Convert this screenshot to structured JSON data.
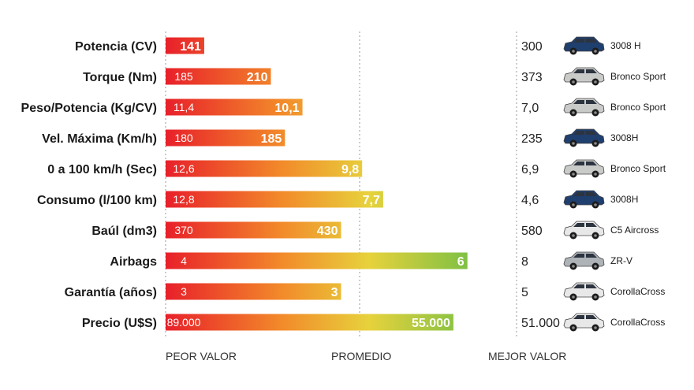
{
  "chart_data": {
    "type": "bar",
    "axis_labels": {
      "worst": "PEOR VALOR",
      "average": "PROMEDIO",
      "best": "MEJOR VALOR"
    },
    "grid": true,
    "rows": [
      {
        "label": "Potencia (CV)",
        "worst": "",
        "value": "141",
        "best": "300",
        "model": "3008 H",
        "score": 0.11,
        "car_color": "#1f3f6e"
      },
      {
        "label": "Torque (Nm)",
        "worst": "185",
        "value": "210",
        "best": "373",
        "model": "Bronco Sport",
        "score": 0.3,
        "car_color": "#c9cbc9"
      },
      {
        "label": "Peso/Potencia (Kg/CV)",
        "worst": "11,4",
        "value": "10,1",
        "best": "7,0",
        "model": "Bronco Sport",
        "score": 0.39,
        "car_color": "#c9cbc9"
      },
      {
        "label": "Vel. Máxima (Km/h)",
        "worst": "180",
        "value": "185",
        "best": "235",
        "model": "3008H",
        "score": 0.34,
        "car_color": "#1f3f6e"
      },
      {
        "label": "0 a 100 km/h (Sec)",
        "worst": "12,6",
        "value": "9,8",
        "best": "6,9",
        "model": "Bronco Sport",
        "score": 0.56,
        "car_color": "#c9cbc9"
      },
      {
        "label": "Consumo (l/100 km)",
        "worst": "12,8",
        "value": "7,7",
        "best": "4,6",
        "model": "3008H",
        "score": 0.62,
        "car_color": "#1f3f6e"
      },
      {
        "label": "Baúl (dm3)",
        "worst": "370",
        "value": "430",
        "best": "580",
        "model": "C5 Aircross",
        "score": 0.5,
        "car_color": "#e8e8e8"
      },
      {
        "label": "Airbags",
        "worst": "4",
        "value": "6",
        "best": "8",
        "model": "ZR-V",
        "score": 0.86,
        "car_color": "#aeb3b8"
      },
      {
        "label": "Garantía (años)",
        "worst": "3",
        "value": "3",
        "best": "5",
        "model": "CorollaCross",
        "score": 0.5,
        "car_color": "#e8e8e8"
      },
      {
        "label": "Precio (U$S)",
        "worst": "89.000",
        "value": "55.000",
        "best": "51.000",
        "model": "CorollaCross",
        "score": 0.82,
        "car_color": "#e8e8e8"
      }
    ],
    "gradient_colors": [
      "#e8202a",
      "#f28a2a",
      "#e7d23c",
      "#4cb848"
    ]
  }
}
